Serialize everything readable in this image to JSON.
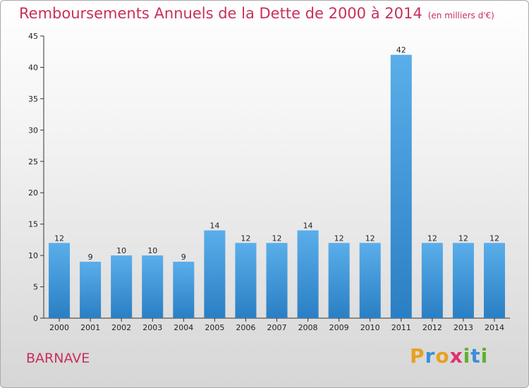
{
  "chart_data": {
    "type": "bar",
    "title": "Remboursements Annuels de la Dette de 2000 à 2014",
    "subtitle": "(en milliers d'€)",
    "categories": [
      "2000",
      "2001",
      "2002",
      "2003",
      "2004",
      "2005",
      "2006",
      "2007",
      "2008",
      "2009",
      "2010",
      "2011",
      "2012",
      "2013",
      "2014"
    ],
    "values": [
      12,
      9,
      10,
      10,
      9,
      14,
      12,
      12,
      14,
      12,
      12,
      42,
      12,
      12,
      12
    ],
    "ylim": [
      0,
      45
    ],
    "yticks": [
      0,
      5,
      10,
      15,
      20,
      25,
      30,
      35,
      40,
      45
    ],
    "grid": false,
    "bar_color": "#4a9fe0"
  },
  "commune": "BARNAVE",
  "logo": {
    "letters": [
      "P",
      "r",
      "o",
      "x",
      "i",
      "t",
      "i"
    ],
    "colors": [
      "#e8a020",
      "#3a8fd8",
      "#e8a020",
      "#e03070",
      "#60b030",
      "#3a8fd8",
      "#60b030"
    ]
  }
}
